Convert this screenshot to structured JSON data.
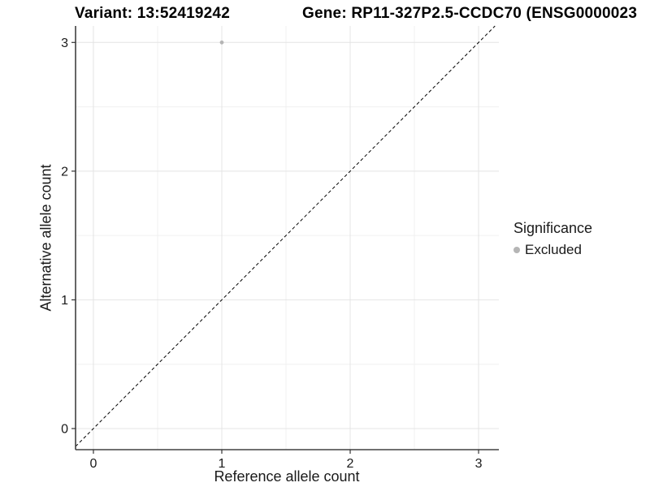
{
  "chart_data": {
    "type": "scatter",
    "titles": {
      "left": "Variant: 13:52419242",
      "right": "Gene: RP11-327P2.5-CCDC70 (ENSG0000023"
    },
    "xlabel": "Reference allele count",
    "ylabel": "Alternative allele count",
    "x_ticks": [
      0,
      1,
      2,
      3
    ],
    "y_ticks": [
      0,
      1,
      2,
      3
    ],
    "xlim": [
      -0.139,
      3.158
    ],
    "ylim": [
      -0.164,
      3.128
    ],
    "grid": {
      "major": true,
      "minor": true,
      "minor_step": 0.5
    },
    "points": [
      {
        "x": 1,
        "y": 3,
        "series": "Excluded"
      }
    ],
    "reference_line": {
      "type": "identity",
      "style": "dashed"
    },
    "legend": {
      "title": "Significance",
      "position": "right",
      "items": [
        {
          "label": "Excluded",
          "color": "#b5b5b5"
        }
      ]
    },
    "colors": {
      "point": "#b5b5b5",
      "grid_major": "#e4e4e4",
      "grid_minor": "#f0f0f0",
      "axis_line": "#404040",
      "tick_mark": "#333333",
      "dashed_line": "#000000"
    }
  }
}
